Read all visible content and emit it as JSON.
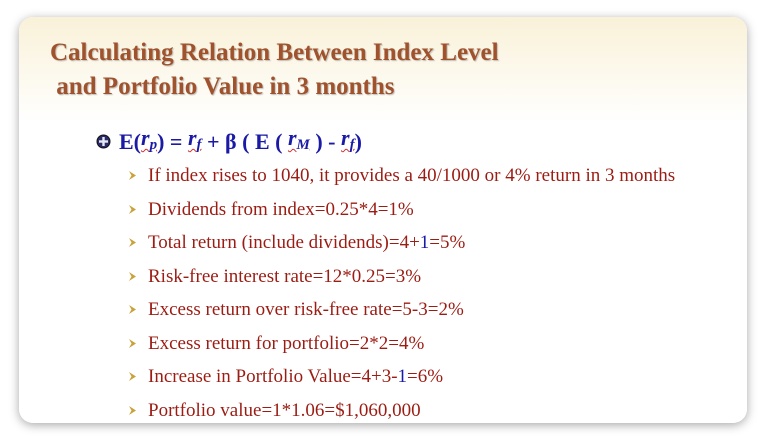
{
  "slide": {
    "title_line1": "Calculating Relation Between Index Level",
    "title_line2": " and Portfolio Value in 3 months",
    "formula": {
      "bullet_icon": "circle-plus-icon",
      "e_open": "E(",
      "rp": "r",
      "rp_sub": "p",
      "close_eq": ") = ",
      "rf": "r",
      "rf_sub": "f",
      "plus_beta": " + β ( E ( ",
      "rm": "r",
      "rm_sub": "M",
      "minus": " ) - ",
      "rf2": "r",
      "rf2_sub": "f",
      "end": ")"
    },
    "items": [
      {
        "text": "If index rises to 1040, it provides a 40/1000 or 4% return in 3 months"
      },
      {
        "text": "Dividends from index=0.25*4=1%"
      },
      {
        "pre": "Total return (include dividends)=4+",
        "blue": "1",
        "post": "=5%"
      },
      {
        "text": "Risk-free interest rate=12*0.25=3%"
      },
      {
        "text": "Excess return over risk-free rate=5-3=2%"
      },
      {
        "text": "Excess return for portfolio=2*2=4%"
      },
      {
        "pre": "Increase in Portfolio Value=4+3-",
        "blue": "1",
        "post": "=6%"
      },
      {
        "text": "Portfolio value=1*1.06=$1,060,000"
      }
    ],
    "item_bullet_icon": "arrow-bullet-icon",
    "colors": {
      "title": "#a0522d",
      "formula": "#1a1aa6",
      "items": "#9b1c13",
      "bullet": "#c9a23a"
    }
  }
}
